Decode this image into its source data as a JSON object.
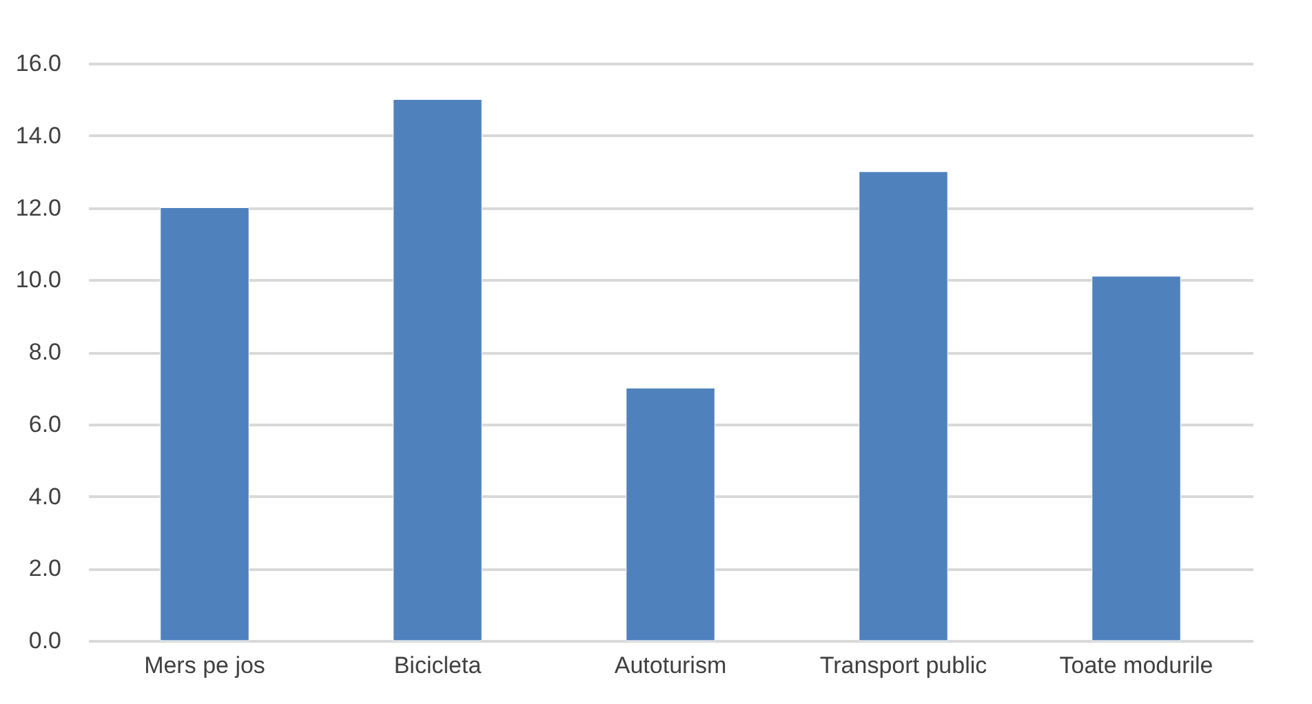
{
  "chart_data": {
    "type": "bar",
    "categories": [
      "Mers pe jos",
      "Bicicleta",
      "Autoturism",
      "Transport public",
      "Toate modurile"
    ],
    "values": [
      12.0,
      15.0,
      7.0,
      13.0,
      10.1
    ],
    "color": "#4f81bd",
    "ylim": [
      0,
      16
    ],
    "yticks": [
      {
        "value": 0,
        "label": "0.0"
      },
      {
        "value": 2,
        "label": "2.0"
      },
      {
        "value": 4,
        "label": "4.0"
      },
      {
        "value": 6,
        "label": "6.0"
      },
      {
        "value": 8,
        "label": "8.0"
      },
      {
        "value": 10,
        "label": "10.0"
      },
      {
        "value": 12,
        "label": "12.0"
      },
      {
        "value": 14,
        "label": "14.0"
      },
      {
        "value": 16,
        "label": "16.0"
      }
    ],
    "grid": true
  }
}
